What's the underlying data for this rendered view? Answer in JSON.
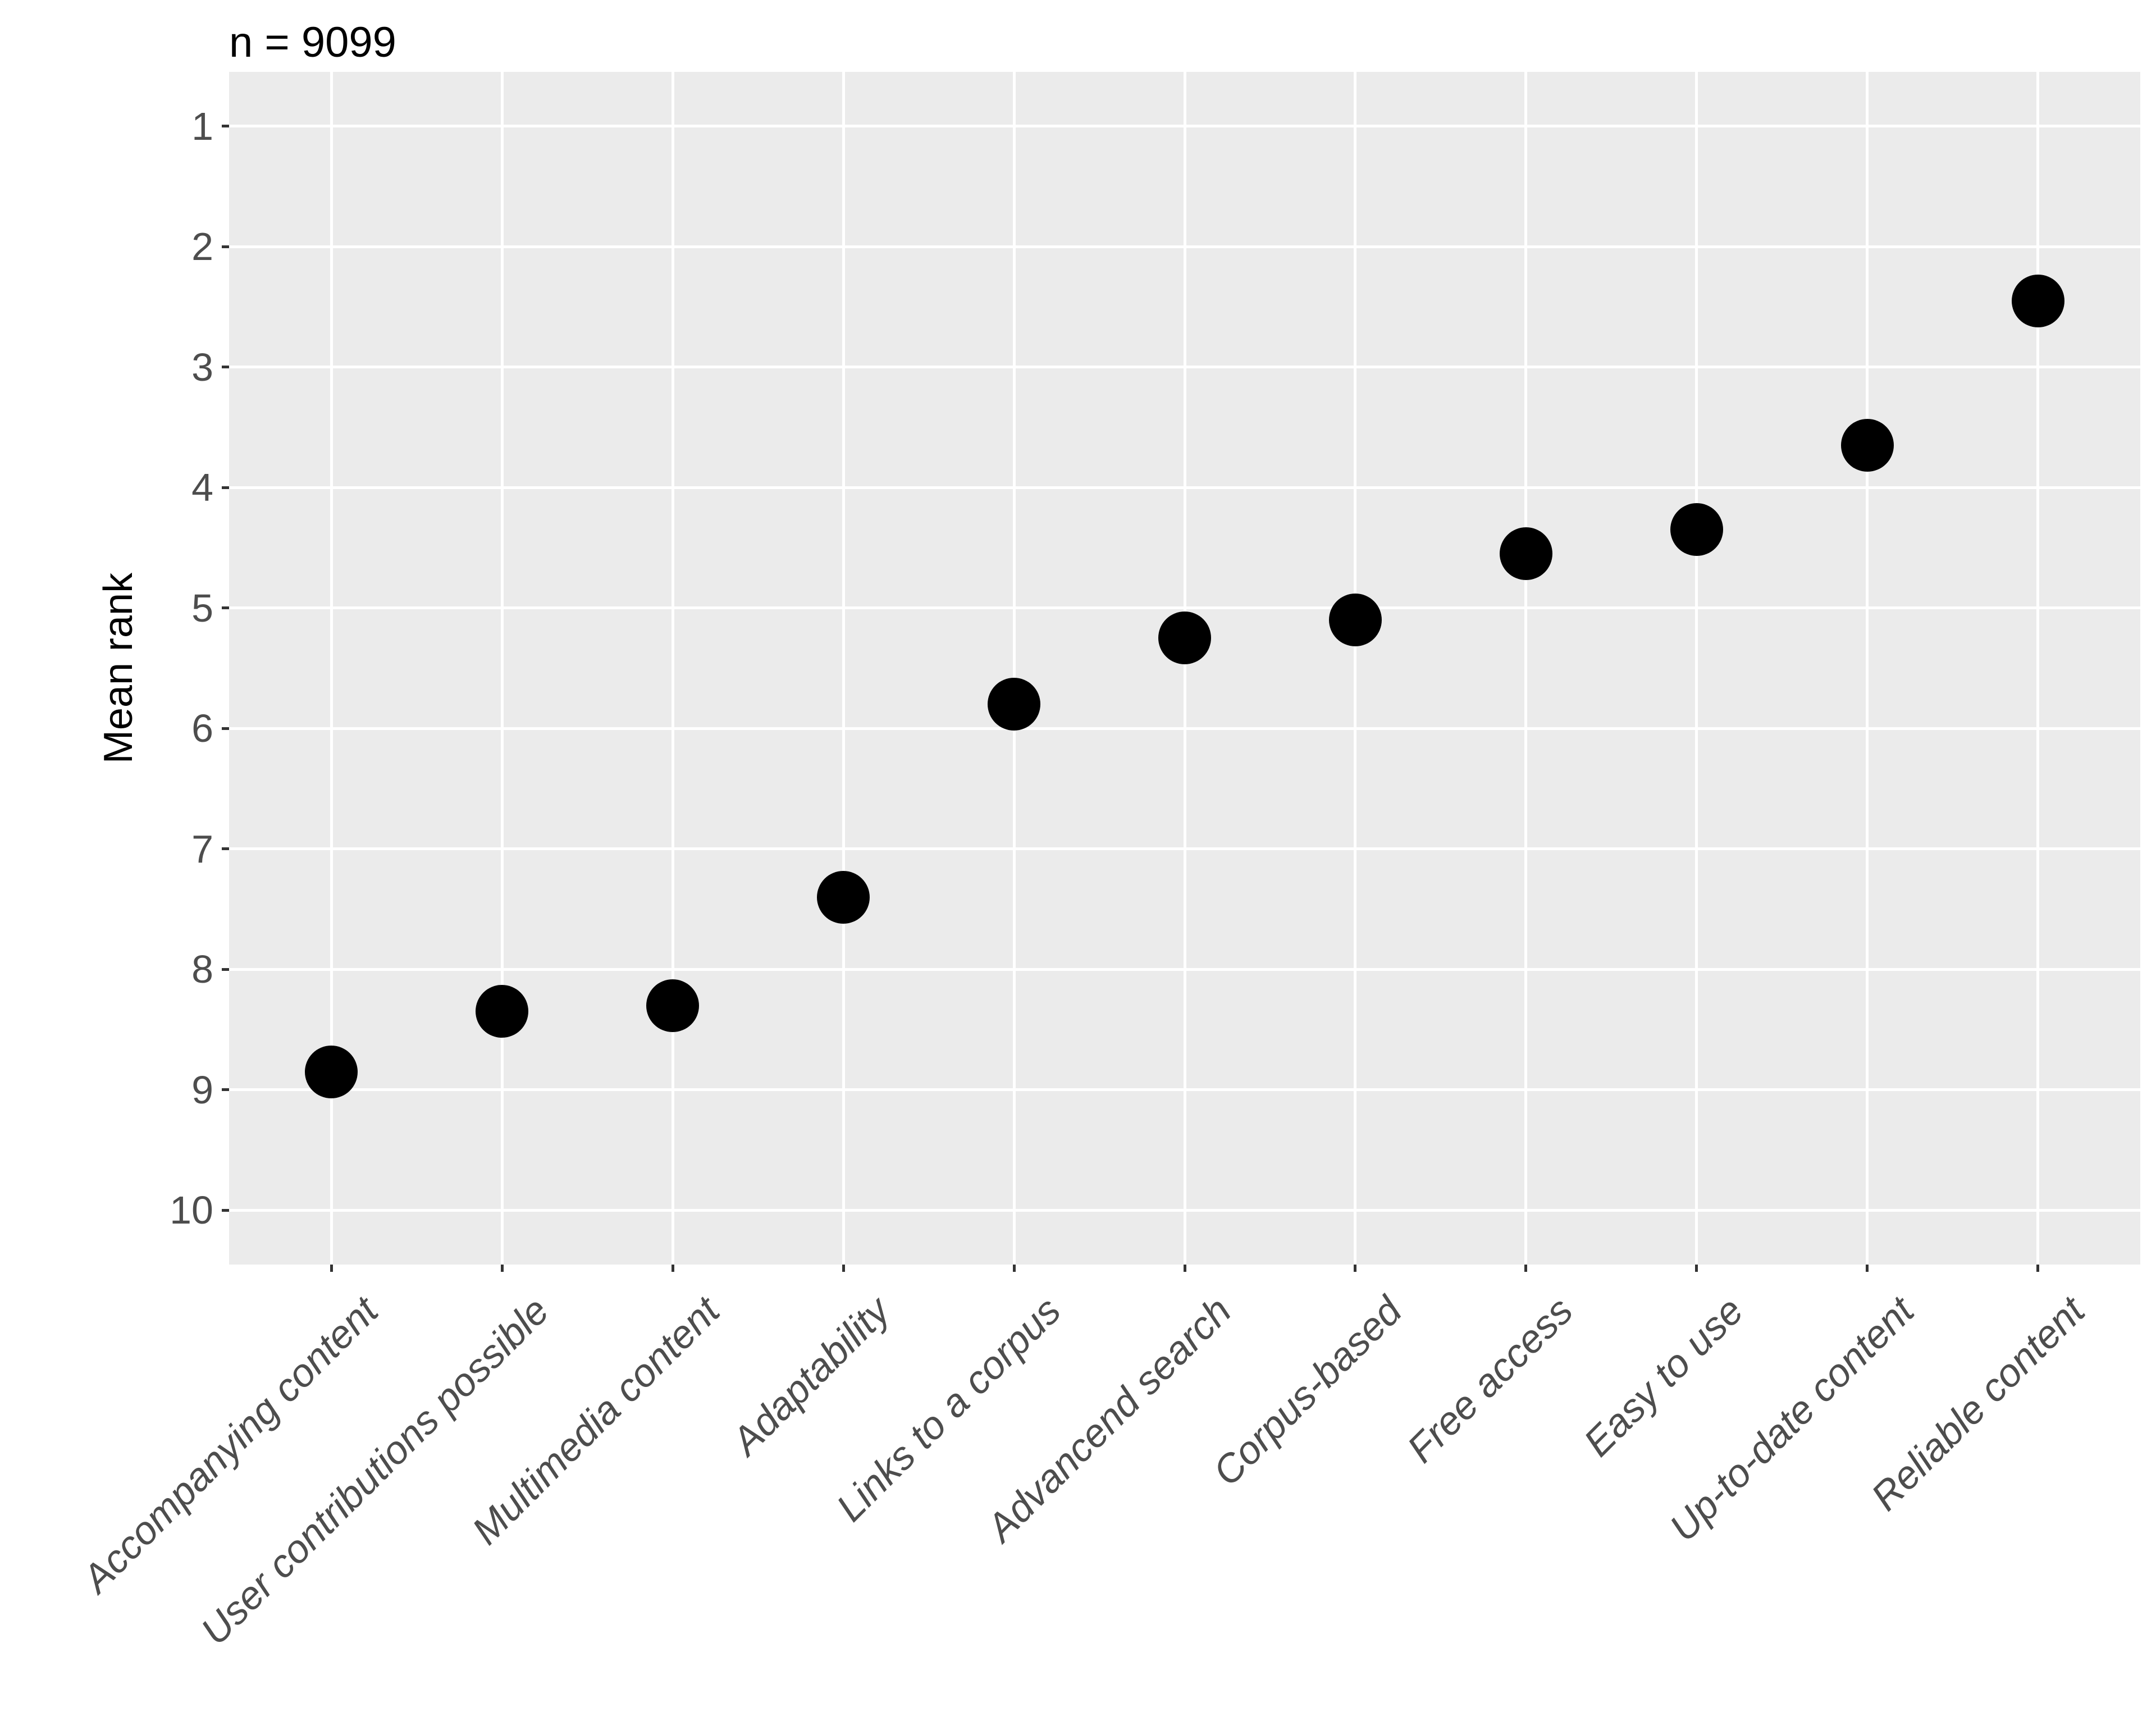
{
  "title": "n = 9099",
  "colors": {
    "background": "#FFFFFF",
    "panel_background": "#EBEBEB",
    "gridline": "#FFFFFF",
    "point": "#000000",
    "tick_mark": "#333333",
    "tick_label": "#4D4D4D",
    "axis_title": "#000000",
    "plot_title": "#000000"
  },
  "chart_data": {
    "type": "scatter",
    "title": "n = 9099",
    "xlabel": "",
    "ylabel": "Mean rank",
    "categories": [
      "Accompanying content",
      "User contributions possible",
      "Multimedia content",
      "Adaptability",
      "Links to a corpus",
      "Advancend search",
      "Corpus-based",
      "Free access",
      "Easy to use",
      "Up-to-date content",
      "Reliable content"
    ],
    "values": [
      8.85,
      8.35,
      8.3,
      7.4,
      5.8,
      5.25,
      5.1,
      4.55,
      4.35,
      3.65,
      2.45
    ],
    "y_ticks": [
      1,
      2,
      3,
      4,
      5,
      6,
      7,
      8,
      9,
      10
    ],
    "ylim": [
      0.55,
      10.45
    ],
    "y_axis_reversed": true,
    "x_tick_label_angle_deg": 45,
    "x_tick_label_style": "italic",
    "grid": "major only, white on gray panel",
    "legend": "none",
    "point_shape": "filled circle"
  }
}
